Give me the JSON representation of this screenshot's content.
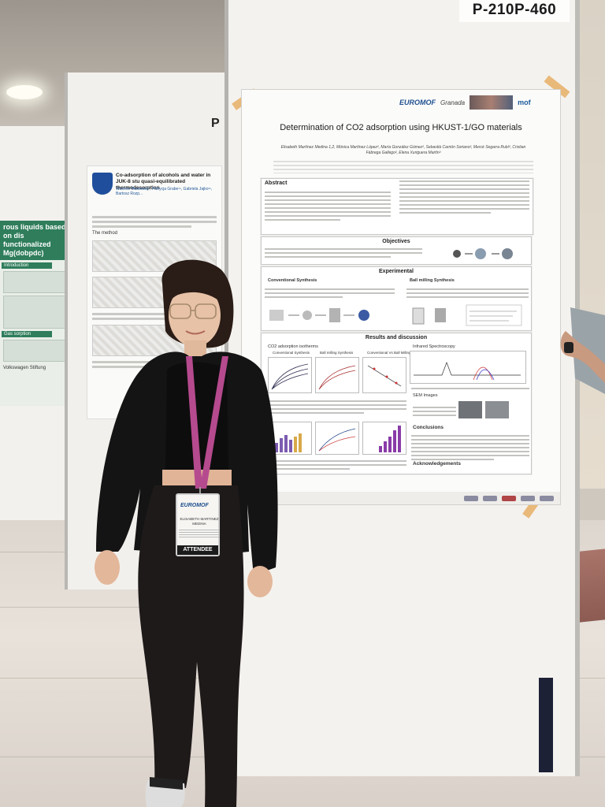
{
  "scene": {
    "board_code": "P-210P-460",
    "main_poster": {
      "logos": {
        "euromof": "EUROMOF",
        "granada": "Granada",
        "mof": "mof"
      },
      "title": "Determination of CO2 adsorption using HKUST-1/GO materials",
      "authors": "Elisabeth Martínez Medina 1,2, Mónica Martínez López², María González Gómez², Sebastià Carrión Soriano², Mercè Segarra Rubí², Cristian Fàbrega Gallego², Elena Xuriguera Martín²",
      "sections": {
        "abstract": "Abstract",
        "objectives": "Objectives",
        "experimental": "Experimental",
        "conventional": "Conventional Synthesis",
        "ball_milling": "Ball milling Synthesis",
        "results": "Results and discussion",
        "co2_isotherms": "CO2 adsorption isotherms",
        "infrared": "Infrared Spectroscopy",
        "sem": "SEM Images",
        "conclusions": "Conclusions",
        "acknowledgements": "Acknowledgements"
      },
      "plot_labels": {
        "conv": "Conventional Synthesis",
        "ball": "Ball milling Synthesis",
        "vs": "Conventional Vs Ball Milling"
      }
    },
    "middle_poster": {
      "title": "Co-adsorption of alcohols and water in JUK-8 stu quasi-equilibrated thermodesorption",
      "authors": "Wachne Makowski¹, Patrycja Grabe¹ⁿ, Gabriela Jajko¹ⁿ, Bartosz Rozp...",
      "caption_method": "The method"
    },
    "left_poster": {
      "title": "rous liquids based on dis functionalized Mg(dobpdc)",
      "section_intro": "Introduction",
      "section_gas": "Gas sorption",
      "footer": "Volkswagen Stiftung"
    },
    "badge": {
      "logo": "EUROMOF",
      "name": "ELISABETH MARTINEZ MEDINA",
      "role": "ATTENDEE"
    }
  }
}
